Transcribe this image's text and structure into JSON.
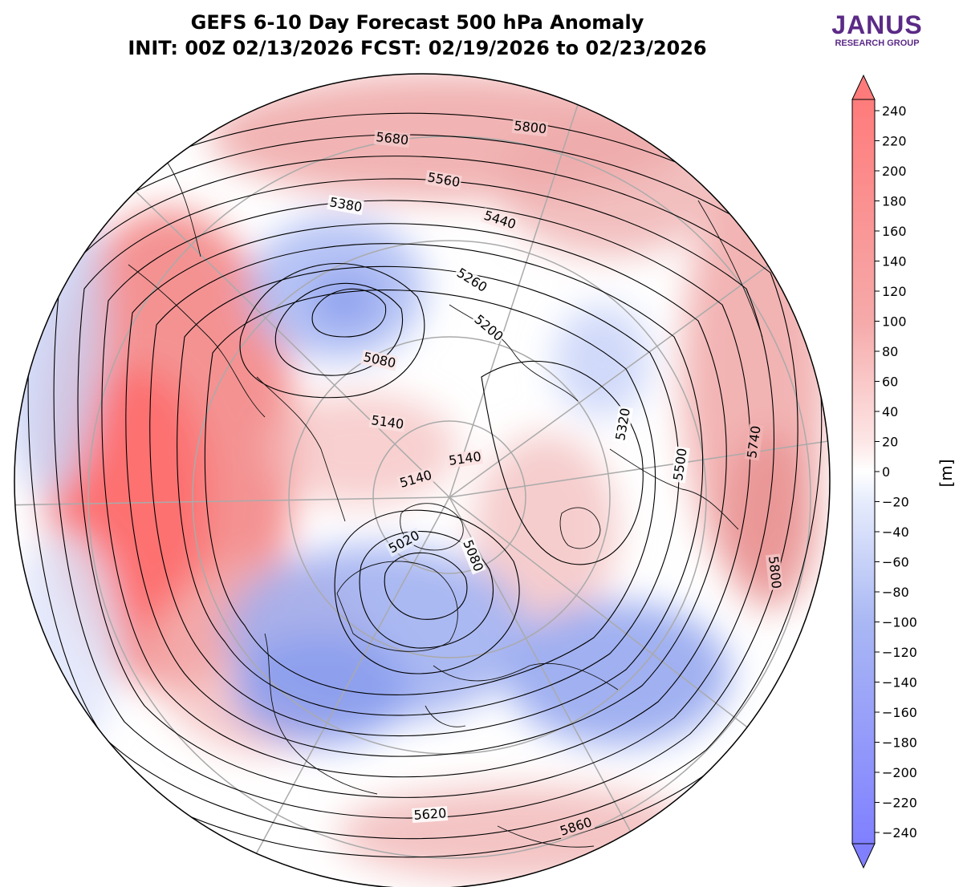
{
  "title": {
    "line1": "GEFS 6-10 Day Forecast 500 hPa Anomaly",
    "line2": "INIT: 00Z 02/13/2026     FCST: 02/19/2026 to 02/23/2026"
  },
  "logo": {
    "name": "JANUS",
    "subtitle": "RESEARCH GROUP"
  },
  "colorbar": {
    "unit_label": "[m]",
    "ticks": [
      "240",
      "220",
      "200",
      "180",
      "160",
      "140",
      "120",
      "100",
      "80",
      "60",
      "40",
      "20",
      "0",
      "−20",
      "−40",
      "−60",
      "−80",
      "−100",
      "−120",
      "−140",
      "−160",
      "−180",
      "−200",
      "−220",
      "−240"
    ],
    "positive_color": "#ff7b7b",
    "negative_color": "#8080ff",
    "neutral_color": "#ffffff"
  },
  "contour_labels": [
    "5800",
    "5680",
    "5560",
    "5440",
    "5380",
    "5260",
    "5200",
    "5080",
    "5140",
    "5140",
    "5140",
    "5320",
    "5500",
    "5740",
    "5800",
    "5020",
    "5080",
    "5620",
    "5860"
  ],
  "colors": {
    "positive": "#f07a7a",
    "negative": "#8b9cf0",
    "contour": "#000000",
    "coast": "#111111",
    "grid": "#aaaaaa"
  }
}
